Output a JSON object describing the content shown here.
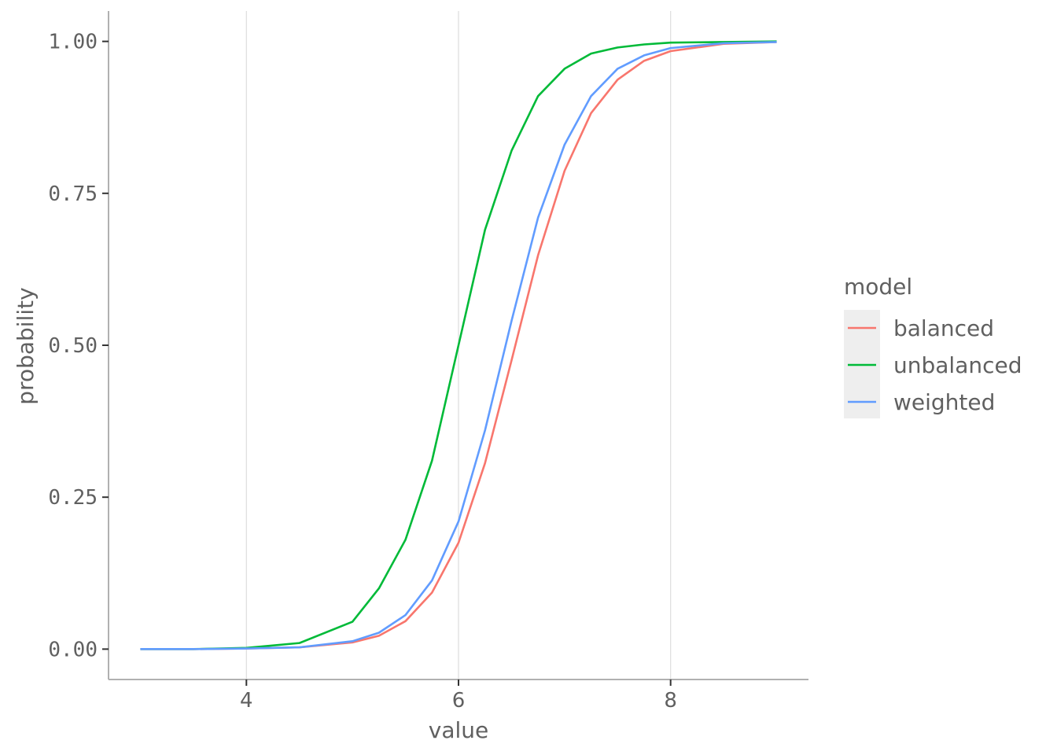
{
  "chart_data": {
    "type": "line",
    "xlabel": "value",
    "ylabel": "probability",
    "xlim": [
      2.7,
      9.3
    ],
    "ylim": [
      -0.05,
      1.05
    ],
    "x_ticks": [
      4,
      6,
      8
    ],
    "x_tick_labels": [
      "4",
      "6",
      "8"
    ],
    "y_ticks": [
      0,
      0.25,
      0.5,
      0.75,
      1.0
    ],
    "y_tick_labels": [
      "0.00",
      "0.25",
      "0.50",
      "0.75",
      "1.00"
    ],
    "grid": "vertical major lines only",
    "legend": {
      "title": "model",
      "placement": "right",
      "entries": [
        "balanced",
        "unbalanced",
        "weighted"
      ]
    },
    "series": [
      {
        "name": "balanced",
        "color": "#F8766D",
        "x": [
          3.0,
          3.5,
          4.0,
          4.5,
          5.0,
          5.25,
          5.5,
          5.75,
          6.0,
          6.25,
          6.5,
          6.75,
          7.0,
          7.25,
          7.5,
          7.75,
          8.0,
          8.5,
          9.0
        ],
        "y": [
          0.0,
          0.0,
          0.001,
          0.003,
          0.011,
          0.022,
          0.046,
          0.093,
          0.175,
          0.306,
          0.475,
          0.648,
          0.787,
          0.882,
          0.937,
          0.968,
          0.984,
          0.996,
          0.999
        ]
      },
      {
        "name": "unbalanced",
        "color": "#00BA38",
        "x": [
          3.0,
          3.5,
          4.0,
          4.5,
          5.0,
          5.25,
          5.5,
          5.75,
          6.0,
          6.25,
          6.5,
          6.75,
          7.0,
          7.25,
          7.5,
          7.75,
          8.0,
          8.5,
          9.0
        ],
        "y": [
          0.0,
          0.0,
          0.002,
          0.01,
          0.045,
          0.1,
          0.18,
          0.31,
          0.5,
          0.69,
          0.82,
          0.91,
          0.955,
          0.98,
          0.99,
          0.995,
          0.998,
          0.999,
          1.0
        ]
      },
      {
        "name": "weighted",
        "color": "#619CFF",
        "x": [
          3.0,
          3.5,
          4.0,
          4.5,
          5.0,
          5.25,
          5.5,
          5.75,
          6.0,
          6.25,
          6.5,
          6.75,
          7.0,
          7.25,
          7.5,
          7.75,
          8.0,
          8.5,
          9.0
        ],
        "y": [
          0.0,
          0.0,
          0.001,
          0.003,
          0.013,
          0.027,
          0.056,
          0.113,
          0.21,
          0.36,
          0.54,
          0.71,
          0.83,
          0.91,
          0.955,
          0.977,
          0.989,
          0.997,
          0.999
        ]
      }
    ]
  }
}
